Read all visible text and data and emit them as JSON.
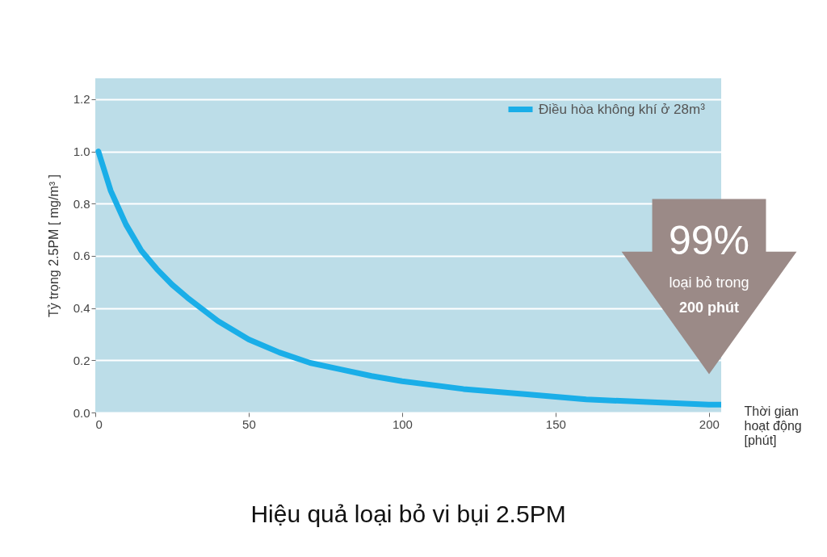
{
  "chart_data": {
    "type": "line",
    "title": "Hiệu quả loại bỏ vi bụi 2.5PM",
    "xlabel": "Thời gian hoạt động [phút]",
    "ylabel": "Tỷ trọng 2.5PM [ mg/m³ ]",
    "x": [
      1,
      5,
      10,
      15,
      20,
      25,
      30,
      40,
      50,
      60,
      70,
      80,
      90,
      100,
      120,
      140,
      160,
      180,
      200,
      204
    ],
    "series": [
      {
        "name": "Điều hòa không khí ở 28m³",
        "color": "#1aaee8",
        "values": [
          1.0,
          0.85,
          0.72,
          0.62,
          0.55,
          0.49,
          0.44,
          0.35,
          0.28,
          0.23,
          0.19,
          0.165,
          0.14,
          0.12,
          0.09,
          0.07,
          0.05,
          0.04,
          0.03,
          0.03
        ]
      }
    ],
    "xlim": [
      0,
      204
    ],
    "xticks": [
      0,
      50,
      100,
      150,
      200
    ],
    "ylim": [
      0,
      1.28
    ],
    "yticks": [
      {
        "value": 0,
        "label": "0.0"
      },
      0.2,
      0.4,
      0.6,
      0.8,
      {
        "value": 1,
        "label": "1.0"
      },
      1.2
    ],
    "grid": "y",
    "legend": "top right",
    "line_style": "solid",
    "annotations": [
      "99%",
      "loại bỏ trong",
      "200 phút"
    ]
  }
}
